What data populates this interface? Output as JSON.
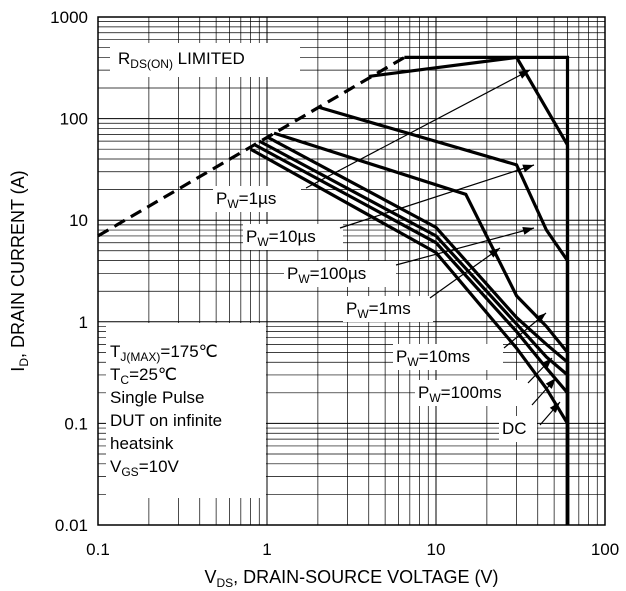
{
  "chart_data": {
    "type": "line",
    "title": "",
    "xlabel": {
      "main": "V",
      "sub": "DS",
      "rest": ", DRAIN-SOURCE VOLTAGE (V)"
    },
    "ylabel": {
      "main": "I",
      "sub": "D",
      "rest": ", DRAIN CURRENT (A)"
    },
    "x_scale": "log",
    "y_scale": "log",
    "xlim": [
      0.1,
      100
    ],
    "ylim": [
      0.01,
      1000
    ],
    "x_ticks": [
      "0.1",
      "1",
      "10",
      "100"
    ],
    "y_ticks": [
      "0.01",
      "0.1",
      "1",
      "10",
      "100",
      "1000"
    ],
    "grid": true,
    "series": [
      {
        "name": "RDS(ON) LIMITED",
        "style": "dashed",
        "x": [
          0.1,
          6.5
        ],
        "y": [
          7,
          400
        ]
      },
      {
        "name": "PW=1µs",
        "style": "solid",
        "x": [
          4,
          30,
          60,
          60
        ],
        "y": [
          260,
          400,
          55,
          0.01
        ]
      },
      {
        "name": "PW=10µs",
        "style": "solid",
        "x": [
          2,
          30,
          45,
          60,
          60
        ],
        "y": [
          130,
          35,
          8,
          4,
          0.01
        ]
      },
      {
        "name": "PW=100µs",
        "style": "solid",
        "x": [
          1.1,
          15,
          30,
          45,
          60,
          60
        ],
        "y": [
          72,
          18,
          1.8,
          0.9,
          0.5,
          0.01
        ]
      },
      {
        "name": "PW=1ms",
        "style": "solid",
        "x": [
          1.0,
          10,
          30,
          45,
          60,
          60
        ],
        "y": [
          66,
          8.5,
          1.1,
          0.6,
          0.4,
          0.01
        ]
      },
      {
        "name": "PW=10ms",
        "style": "solid",
        "x": [
          0.9,
          10,
          30,
          45,
          60,
          60
        ],
        "y": [
          60,
          7,
          0.95,
          0.45,
          0.3,
          0.01
        ]
      },
      {
        "name": "PW=100ms",
        "style": "solid",
        "x": [
          0.85,
          10,
          30,
          45,
          60,
          60
        ],
        "y": [
          55,
          6,
          0.8,
          0.35,
          0.2,
          0.01
        ]
      },
      {
        "name": "DC",
        "style": "solid",
        "x": [
          0.8,
          10,
          30,
          45,
          60,
          60
        ],
        "y": [
          50,
          4.8,
          0.55,
          0.22,
          0.1,
          0.01
        ]
      },
      {
        "name": "max-current",
        "style": "solid",
        "x": [
          6.5,
          60,
          60
        ],
        "y": [
          400,
          400,
          0.01
        ]
      }
    ],
    "annotations": [
      {
        "name": "rds-on-limited",
        "main": "R",
        "sub": "DS(ON)",
        "rest": " LIMITED"
      },
      {
        "name": "pw-1us",
        "main": "P",
        "sub": "W",
        "rest": "=1µs"
      },
      {
        "name": "pw-10us",
        "main": "P",
        "sub": "W",
        "rest": "=10µs"
      },
      {
        "name": "pw-100us",
        "main": "P",
        "sub": "W",
        "rest": "=100µs"
      },
      {
        "name": "pw-1ms",
        "main": "P",
        "sub": "W",
        "rest": "=1ms"
      },
      {
        "name": "pw-10ms",
        "main": "P",
        "sub": "W",
        "rest": "=10ms"
      },
      {
        "name": "pw-100ms",
        "main": "P",
        "sub": "W",
        "rest": "=100ms"
      },
      {
        "name": "dc",
        "main": "DC",
        "sub": "",
        "rest": ""
      }
    ],
    "conditions": [
      {
        "main": "T",
        "sub": "J(MAX)",
        "rest": "=175℃"
      },
      {
        "main": "T",
        "sub": "C",
        "rest": "=25℃"
      },
      {
        "main": "Single Pulse",
        "sub": "",
        "rest": ""
      },
      {
        "main": "DUT on infinite",
        "sub": "",
        "rest": ""
      },
      {
        "main": "heatsink",
        "sub": "",
        "rest": ""
      },
      {
        "main": "V",
        "sub": "GS",
        "rest": "=10V"
      }
    ]
  }
}
